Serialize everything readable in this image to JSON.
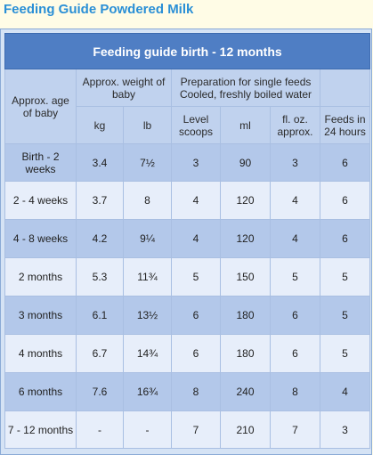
{
  "page_title": "Feeding Guide Powdered Milk",
  "table": {
    "caption": "Feeding guide birth - 12 months",
    "headers": {
      "age": "Approx. age of baby",
      "weight_group": "Approx. weight of baby",
      "prep_group_line1": "Preparation for single feeds",
      "prep_group_line2": "Cooled, freshly boiled water",
      "kg": "kg",
      "lb": "lb",
      "scoops": "Level scoops",
      "ml": "ml",
      "floz": "fl. oz. approx.",
      "feeds": "Feeds in 24 hours"
    },
    "rows": [
      {
        "age": "Birth - 2 weeks",
        "kg": "3.4",
        "lb": "7½",
        "scoops": "3",
        "ml": "90",
        "floz": "3",
        "feeds": "6"
      },
      {
        "age": "2 - 4 weeks",
        "kg": "3.7",
        "lb": "8",
        "scoops": "4",
        "ml": "120",
        "floz": "4",
        "feeds": "6"
      },
      {
        "age": "4 - 8 weeks",
        "kg": "4.2",
        "lb": "9¼",
        "scoops": "4",
        "ml": "120",
        "floz": "4",
        "feeds": "6"
      },
      {
        "age": "2 months",
        "kg": "5.3",
        "lb": "11¾",
        "scoops": "5",
        "ml": "150",
        "floz": "5",
        "feeds": "5"
      },
      {
        "age": "3 months",
        "kg": "6.1",
        "lb": "13½",
        "scoops": "6",
        "ml": "180",
        "floz": "6",
        "feeds": "5"
      },
      {
        "age": "4 months",
        "kg": "6.7",
        "lb": "14¾",
        "scoops": "6",
        "ml": "180",
        "floz": "6",
        "feeds": "5"
      },
      {
        "age": "6 months",
        "kg": "7.6",
        "lb": "16¾",
        "scoops": "8",
        "ml": "240",
        "floz": "8",
        "feeds": "4"
      },
      {
        "age": "7 - 12 months",
        "kg": "-",
        "lb": "-",
        "scoops": "7",
        "ml": "210",
        "floz": "7",
        "feeds": "3"
      }
    ]
  }
}
